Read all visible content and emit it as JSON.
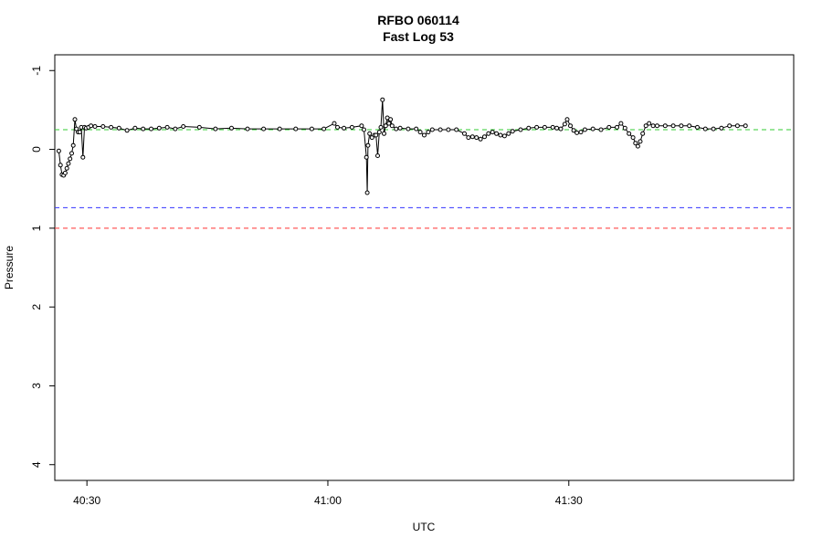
{
  "chart_data": {
    "type": "line",
    "title": "RFBO 060114",
    "subtitle": "Fast Log 53",
    "xlabel": "UTC",
    "ylabel": "Pressure",
    "x_unit": "seconds after 40:00 (mm:ss)",
    "xlim": [
      "40:26",
      "41:58"
    ],
    "ylim": [
      4.2,
      -1.2
    ],
    "y_reversed": true,
    "grid": false,
    "x_ticks": [
      {
        "value": 30,
        "label": "40:30"
      },
      {
        "value": 60,
        "label": "41:00"
      },
      {
        "value": 90,
        "label": "41:30"
      }
    ],
    "y_ticks": [
      {
        "value": -1,
        "label": "-1"
      },
      {
        "value": 0,
        "label": "0"
      },
      {
        "value": 1,
        "label": "1"
      },
      {
        "value": 2,
        "label": "2"
      },
      {
        "value": 3,
        "label": "3"
      },
      {
        "value": 4,
        "label": "4"
      }
    ],
    "reference_lines": [
      {
        "y": -0.25,
        "color": "#33cc33",
        "style": "dashed"
      },
      {
        "y": 0.74,
        "color": "#3333ff",
        "style": "dashed"
      },
      {
        "y": 1.0,
        "color": "#ff3333",
        "style": "dashed"
      }
    ],
    "series": [
      {
        "color": "#000000",
        "marker": "open-circle",
        "points": [
          [
            26.5,
            0.02
          ],
          [
            26.7,
            0.2
          ],
          [
            26.9,
            0.32
          ],
          [
            27.1,
            0.33
          ],
          [
            27.3,
            0.3
          ],
          [
            27.5,
            0.24
          ],
          [
            27.7,
            0.18
          ],
          [
            27.9,
            0.12
          ],
          [
            28.1,
            0.05
          ],
          [
            28.3,
            -0.05
          ],
          [
            28.5,
            -0.38
          ],
          [
            28.7,
            -0.26
          ],
          [
            28.9,
            -0.22
          ],
          [
            29.1,
            -0.22
          ],
          [
            29.3,
            -0.28
          ],
          [
            29.5,
            0.1
          ],
          [
            29.7,
            -0.28
          ],
          [
            29.9,
            -0.27
          ],
          [
            30.2,
            -0.28
          ],
          [
            30.5,
            -0.3
          ],
          [
            31,
            -0.29
          ],
          [
            32,
            -0.29
          ],
          [
            33,
            -0.28
          ],
          [
            34,
            -0.27
          ],
          [
            35,
            -0.24
          ],
          [
            36,
            -0.27
          ],
          [
            37,
            -0.26
          ],
          [
            38,
            -0.26
          ],
          [
            39,
            -0.27
          ],
          [
            40,
            -0.28
          ],
          [
            41,
            -0.26
          ],
          [
            42,
            -0.29
          ],
          [
            44,
            -0.28
          ],
          [
            46,
            -0.26
          ],
          [
            48,
            -0.27
          ],
          [
            50,
            -0.26
          ],
          [
            52,
            -0.26
          ],
          [
            54,
            -0.26
          ],
          [
            56,
            -0.26
          ],
          [
            58,
            -0.26
          ],
          [
            59.5,
            -0.26
          ],
          [
            60.8,
            -0.33
          ],
          [
            61.2,
            -0.28
          ],
          [
            62,
            -0.27
          ],
          [
            63,
            -0.28
          ],
          [
            64.2,
            -0.3
          ],
          [
            64.5,
            -0.25
          ],
          [
            64.8,
            0.1
          ],
          [
            64.9,
            0.55
          ],
          [
            65.0,
            -0.05
          ],
          [
            65.2,
            -0.2
          ],
          [
            65.5,
            -0.15
          ],
          [
            65.8,
            -0.18
          ],
          [
            66.0,
            -0.18
          ],
          [
            66.2,
            0.08
          ],
          [
            66.4,
            -0.22
          ],
          [
            66.6,
            -0.28
          ],
          [
            66.8,
            -0.63
          ],
          [
            67.0,
            -0.2
          ],
          [
            67.2,
            -0.3
          ],
          [
            67.4,
            -0.4
          ],
          [
            67.6,
            -0.33
          ],
          [
            67.8,
            -0.38
          ],
          [
            68.0,
            -0.3
          ],
          [
            68.5,
            -0.26
          ],
          [
            69,
            -0.27
          ],
          [
            70,
            -0.26
          ],
          [
            71,
            -0.26
          ],
          [
            71.5,
            -0.22
          ],
          [
            72,
            -0.18
          ],
          [
            72.5,
            -0.22
          ],
          [
            73,
            -0.25
          ],
          [
            74,
            -0.25
          ],
          [
            75,
            -0.25
          ],
          [
            76,
            -0.25
          ],
          [
            77,
            -0.2
          ],
          [
            77.5,
            -0.15
          ],
          [
            78,
            -0.16
          ],
          [
            78.5,
            -0.15
          ],
          [
            79,
            -0.13
          ],
          [
            79.5,
            -0.16
          ],
          [
            80,
            -0.2
          ],
          [
            80.5,
            -0.22
          ],
          [
            81,
            -0.2
          ],
          [
            81.5,
            -0.18
          ],
          [
            82,
            -0.17
          ],
          [
            82.5,
            -0.2
          ],
          [
            83,
            -0.23
          ],
          [
            84,
            -0.25
          ],
          [
            85,
            -0.27
          ],
          [
            86,
            -0.28
          ],
          [
            87,
            -0.28
          ],
          [
            88,
            -0.28
          ],
          [
            88.5,
            -0.27
          ],
          [
            89,
            -0.26
          ],
          [
            89.5,
            -0.32
          ],
          [
            89.8,
            -0.38
          ],
          [
            90.2,
            -0.3
          ],
          [
            90.6,
            -0.24
          ],
          [
            91,
            -0.21
          ],
          [
            91.5,
            -0.22
          ],
          [
            92,
            -0.25
          ],
          [
            93,
            -0.26
          ],
          [
            94,
            -0.25
          ],
          [
            95,
            -0.28
          ],
          [
            96,
            -0.28
          ],
          [
            96.5,
            -0.33
          ],
          [
            97,
            -0.27
          ],
          [
            97.5,
            -0.2
          ],
          [
            98,
            -0.15
          ],
          [
            98.3,
            -0.08
          ],
          [
            98.6,
            -0.04
          ],
          [
            98.9,
            -0.1
          ],
          [
            99.2,
            -0.2
          ],
          [
            99.6,
            -0.3
          ],
          [
            100,
            -0.33
          ],
          [
            100.5,
            -0.3
          ],
          [
            101,
            -0.3
          ],
          [
            102,
            -0.3
          ],
          [
            103,
            -0.3
          ],
          [
            104,
            -0.3
          ],
          [
            105,
            -0.3
          ],
          [
            106,
            -0.28
          ],
          [
            107,
            -0.26
          ],
          [
            108,
            -0.26
          ],
          [
            109,
            -0.27
          ],
          [
            110,
            -0.3
          ],
          [
            111,
            -0.3
          ],
          [
            112,
            -0.3
          ]
        ]
      }
    ]
  }
}
